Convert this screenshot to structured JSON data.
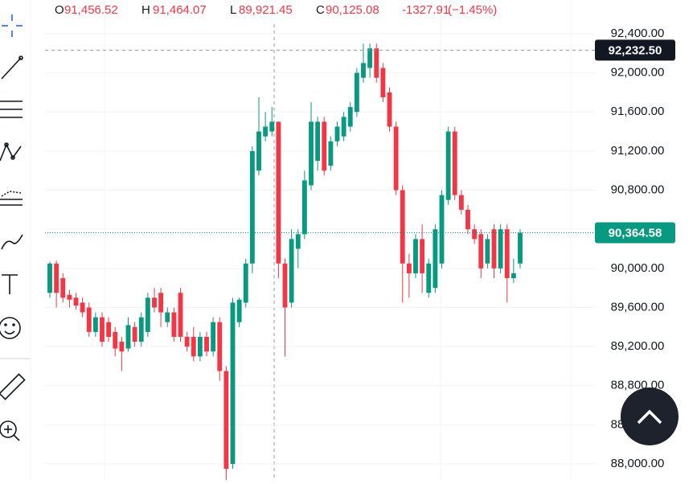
{
  "chart_data": {
    "type": "candlestick",
    "header": [
      {
        "label": "O",
        "value": "91,456.52"
      },
      {
        "label": "H",
        "value": "91,464.07"
      },
      {
        "label": "L",
        "value": "89,921.45"
      },
      {
        "label": "C",
        "value": "90,125.08"
      }
    ],
    "change": "-1327.91",
    "change_pct": "(−1.45%)",
    "up_color": "#089981",
    "down_color": "#f23645",
    "ylim": [
      87836,
      92745
    ],
    "yticks": [
      {
        "value": 88000,
        "label": "88,000.00"
      },
      {
        "value": 88400,
        "label": "88,400.00"
      },
      {
        "value": 88800,
        "label": "88,800.00"
      },
      {
        "value": 89200,
        "label": "89,200.00"
      },
      {
        "value": 89600,
        "label": "89,600.00"
      },
      {
        "value": 90000,
        "label": "90,000.00"
      },
      {
        "value": 90400,
        "label": "90,400.00"
      },
      {
        "value": 90800,
        "label": "90,800.00"
      },
      {
        "value": 91200,
        "label": "91,200.00"
      },
      {
        "value": 91600,
        "label": "91,600.00"
      },
      {
        "value": 92000,
        "label": "92,000.00"
      },
      {
        "value": 92400,
        "label": "92,400.00"
      }
    ],
    "crosshair_price": {
      "value": 92232.5,
      "label": "92,232.50"
    },
    "last_price": {
      "value": 90364.58,
      "label": "90,364.58"
    },
    "candles": [
      {
        "o": 89750,
        "h": 90070,
        "l": 89700,
        "c": 90050
      },
      {
        "o": 90050,
        "h": 90080,
        "l": 89600,
        "c": 89750
      },
      {
        "o": 89900,
        "h": 89950,
        "l": 89650,
        "c": 89700
      },
      {
        "o": 89730,
        "h": 89780,
        "l": 89600,
        "c": 89680
      },
      {
        "o": 89700,
        "h": 89750,
        "l": 89580,
        "c": 89620
      },
      {
        "o": 89650,
        "h": 89700,
        "l": 89500,
        "c": 89550
      },
      {
        "o": 89600,
        "h": 89650,
        "l": 89300,
        "c": 89350
      },
      {
        "o": 89350,
        "h": 89550,
        "l": 89300,
        "c": 89500
      },
      {
        "o": 89500,
        "h": 89550,
        "l": 89200,
        "c": 89250
      },
      {
        "o": 89450,
        "h": 89500,
        "l": 89250,
        "c": 89300
      },
      {
        "o": 89350,
        "h": 89400,
        "l": 89100,
        "c": 89180
      },
      {
        "o": 89250,
        "h": 89300,
        "l": 88950,
        "c": 89150
      },
      {
        "o": 89180,
        "h": 89500,
        "l": 89150,
        "c": 89420
      },
      {
        "o": 89400,
        "h": 89450,
        "l": 89200,
        "c": 89250
      },
      {
        "o": 89250,
        "h": 89550,
        "l": 89200,
        "c": 89500
      },
      {
        "o": 89350,
        "h": 89750,
        "l": 89300,
        "c": 89700
      },
      {
        "o": 89700,
        "h": 89800,
        "l": 89550,
        "c": 89600
      },
      {
        "o": 89750,
        "h": 89800,
        "l": 89400,
        "c": 89550
      },
      {
        "o": 89450,
        "h": 89600,
        "l": 89400,
        "c": 89550
      },
      {
        "o": 89550,
        "h": 89600,
        "l": 89250,
        "c": 89300
      },
      {
        "o": 89750,
        "h": 89800,
        "l": 89250,
        "c": 89300
      },
      {
        "o": 89300,
        "h": 89350,
        "l": 89150,
        "c": 89200
      },
      {
        "o": 89300,
        "h": 89400,
        "l": 89050,
        "c": 89100
      },
      {
        "o": 89100,
        "h": 89350,
        "l": 89050,
        "c": 89300
      },
      {
        "o": 89300,
        "h": 89350,
        "l": 89100,
        "c": 89150
      },
      {
        "o": 89150,
        "h": 89500,
        "l": 89100,
        "c": 89450
      },
      {
        "o": 89450,
        "h": 89500,
        "l": 88850,
        "c": 88950
      },
      {
        "o": 88950,
        "h": 89000,
        "l": 87800,
        "c": 87950
      },
      {
        "o": 88000,
        "h": 89700,
        "l": 87950,
        "c": 89650
      },
      {
        "o": 89450,
        "h": 89700,
        "l": 89400,
        "c": 89680
      },
      {
        "o": 89650,
        "h": 90100,
        "l": 89600,
        "c": 90050
      },
      {
        "o": 90050,
        "h": 91250,
        "l": 89950,
        "c": 91200
      },
      {
        "o": 91000,
        "h": 91750,
        "l": 90950,
        "c": 91400
      },
      {
        "o": 91350,
        "h": 91600,
        "l": 91300,
        "c": 91450
      },
      {
        "o": 91400,
        "h": 91650,
        "l": 91350,
        "c": 91500
      },
      {
        "o": 91500,
        "h": 91500,
        "l": 89900,
        "c": 90050
      },
      {
        "o": 90050,
        "h": 90100,
        "l": 89100,
        "c": 89600
      },
      {
        "o": 89650,
        "h": 90400,
        "l": 89600,
        "c": 90300
      },
      {
        "o": 90200,
        "h": 90400,
        "l": 90000,
        "c": 90350
      },
      {
        "o": 90350,
        "h": 91000,
        "l": 90300,
        "c": 90900
      },
      {
        "o": 90850,
        "h": 91700,
        "l": 90800,
        "c": 91500
      },
      {
        "o": 91100,
        "h": 91550,
        "l": 91000,
        "c": 91500
      },
      {
        "o": 91500,
        "h": 91550,
        "l": 90950,
        "c": 91000
      },
      {
        "o": 91050,
        "h": 91350,
        "l": 91000,
        "c": 91300
      },
      {
        "o": 91300,
        "h": 91500,
        "l": 91250,
        "c": 91450
      },
      {
        "o": 91350,
        "h": 91600,
        "l": 91300,
        "c": 91550
      },
      {
        "o": 91450,
        "h": 91700,
        "l": 91400,
        "c": 91650
      },
      {
        "o": 91600,
        "h": 92050,
        "l": 91550,
        "c": 92000
      },
      {
        "o": 91950,
        "h": 92300,
        "l": 91900,
        "c": 92100
      },
      {
        "o": 92050,
        "h": 92300,
        "l": 91950,
        "c": 92250
      },
      {
        "o": 92250,
        "h": 92300,
        "l": 91900,
        "c": 91950
      },
      {
        "o": 92050,
        "h": 92100,
        "l": 91700,
        "c": 91750
      },
      {
        "o": 91800,
        "h": 91850,
        "l": 91400,
        "c": 91450
      },
      {
        "o": 91450,
        "h": 91500,
        "l": 90750,
        "c": 90800
      },
      {
        "o": 90800,
        "h": 90850,
        "l": 89650,
        "c": 90050
      },
      {
        "o": 90050,
        "h": 90150,
        "l": 89700,
        "c": 89950
      },
      {
        "o": 89950,
        "h": 90350,
        "l": 89900,
        "c": 90300
      },
      {
        "o": 90300,
        "h": 90450,
        "l": 89750,
        "c": 89950
      },
      {
        "o": 89750,
        "h": 90100,
        "l": 89700,
        "c": 90050
      },
      {
        "o": 89800,
        "h": 90450,
        "l": 89750,
        "c": 90400
      },
      {
        "o": 90050,
        "h": 90800,
        "l": 90000,
        "c": 90750
      },
      {
        "o": 90700,
        "h": 91450,
        "l": 90650,
        "c": 91400
      },
      {
        "o": 91400,
        "h": 91450,
        "l": 90700,
        "c": 90750
      },
      {
        "o": 90750,
        "h": 90800,
        "l": 90550,
        "c": 90600
      },
      {
        "o": 90600,
        "h": 90650,
        "l": 90350,
        "c": 90400
      },
      {
        "o": 90400,
        "h": 90450,
        "l": 90250,
        "c": 90300
      },
      {
        "o": 90350,
        "h": 90400,
        "l": 89900,
        "c": 90000
      },
      {
        "o": 90050,
        "h": 90350,
        "l": 90000,
        "c": 90300
      },
      {
        "o": 90400,
        "h": 90450,
        "l": 89900,
        "c": 90000
      },
      {
        "o": 90000,
        "h": 90450,
        "l": 89950,
        "c": 90400
      },
      {
        "o": 90400,
        "h": 90450,
        "l": 89650,
        "c": 89900
      },
      {
        "o": 89900,
        "h": 90100,
        "l": 89850,
        "c": 89950
      },
      {
        "o": 90050,
        "h": 90400,
        "l": 90000,
        "c": 90364.58
      }
    ]
  }
}
